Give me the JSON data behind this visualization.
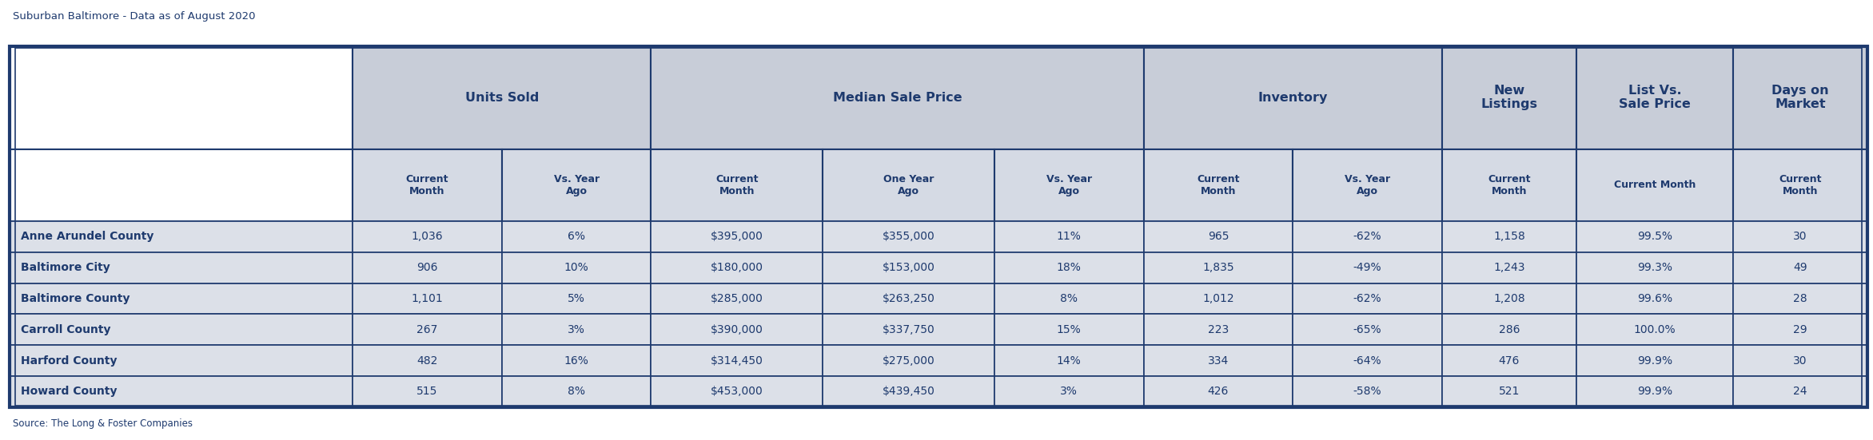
{
  "title": "Suburban Baltimore - Data as of August 2020",
  "source": "Source: The Long & Foster Companies",
  "header_bg": "#c8cdd8",
  "subheader_bg": "#d5dae4",
  "row_bg": "#dce0e8",
  "border_color": "#1e3a6e",
  "text_color": "#1e3a6e",
  "col_props": [
    2.3,
    1.0,
    1.0,
    1.15,
    1.15,
    1.0,
    1.0,
    1.0,
    0.9,
    1.05,
    0.9
  ],
  "group_info": [
    [
      1,
      2,
      "Units Sold"
    ],
    [
      3,
      3,
      "Median Sale Price"
    ],
    [
      6,
      2,
      "Inventory"
    ],
    [
      8,
      1,
      "New\nListings"
    ],
    [
      9,
      1,
      "List Vs.\nSale Price"
    ],
    [
      10,
      1,
      "Days on\nMarket"
    ]
  ],
  "sub_headers": [
    "Current\nMonth",
    "Vs. Year\nAgo",
    "Current\nMonth",
    "One Year\nAgo",
    "Vs. Year\nAgo",
    "Current\nMonth",
    "Vs. Year\nAgo",
    "Current\nMonth",
    "Current Month",
    "Current\nMonth"
  ],
  "row_labels": [
    "Anne Arundel County",
    "Baltimore City",
    "Baltimore County",
    "Carroll County",
    "Harford County",
    "Howard County"
  ],
  "rows": [
    [
      "1,036",
      "6%",
      "$395,000",
      "$355,000",
      "11%",
      "965",
      "-62%",
      "1,158",
      "99.5%",
      "30"
    ],
    [
      "906",
      "10%",
      "$180,000",
      "$153,000",
      "18%",
      "1,835",
      "-49%",
      "1,243",
      "99.3%",
      "49"
    ],
    [
      "1,101",
      "5%",
      "$285,000",
      "$263,250",
      "8%",
      "1,012",
      "-62%",
      "1,208",
      "99.6%",
      "28"
    ],
    [
      "267",
      "3%",
      "$390,000",
      "$337,750",
      "15%",
      "223",
      "-65%",
      "286",
      "100.0%",
      "29"
    ],
    [
      "482",
      "16%",
      "$314,450",
      "$275,000",
      "14%",
      "334",
      "-64%",
      "476",
      "99.9%",
      "30"
    ],
    [
      "515",
      "8%",
      "$453,000",
      "$439,450",
      "3%",
      "426",
      "-58%",
      "521",
      "99.9%",
      "24"
    ]
  ]
}
